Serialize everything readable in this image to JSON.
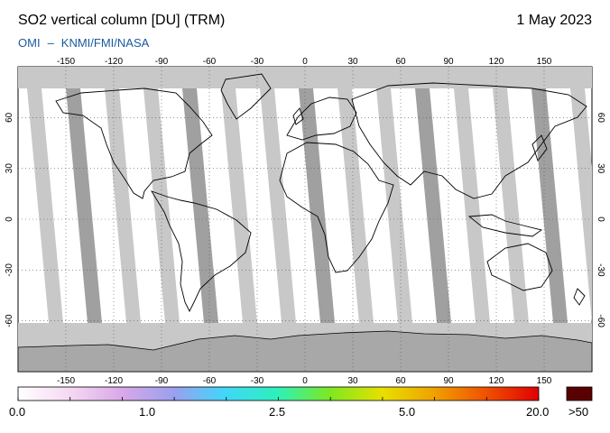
{
  "header": {
    "title": "SO2 vertical column [DU] (TRM)",
    "date": "1 May 2023",
    "credit_instrument": "OMI",
    "credit_separator": "–",
    "credit_agencies": "KNMI/FMI/NASA"
  },
  "map": {
    "projection": "equirectangular",
    "lon_range": [
      -180,
      180
    ],
    "lat_range": [
      -90,
      90
    ],
    "lon_ticks": [
      "-150",
      "-120",
      "-90",
      "-60",
      "-30",
      "0",
      "30",
      "60",
      "90",
      "120",
      "150"
    ],
    "lat_ticks": [
      "60",
      "30",
      "0",
      "-30",
      "-60"
    ],
    "gridlines": "dotted",
    "colors": {
      "background": "#ffffff",
      "no_data": "#c8c8c8",
      "missing_swath": "#a0a0a0",
      "coastline": "#000000"
    }
  },
  "colorbar": {
    "labels": [
      "0.0",
      "1.0",
      "2.5",
      "5.0",
      "20.0"
    ],
    "overflow_label": ">50",
    "overflow_color": "#5a0000",
    "gradient_stops": [
      "#ffffff",
      "#f6d8f2",
      "#d8a8e8",
      "#9aa0f0",
      "#3fd8f8",
      "#2ef0b8",
      "#7ee820",
      "#e8e000",
      "#f0a000",
      "#f05000",
      "#e00000"
    ]
  }
}
